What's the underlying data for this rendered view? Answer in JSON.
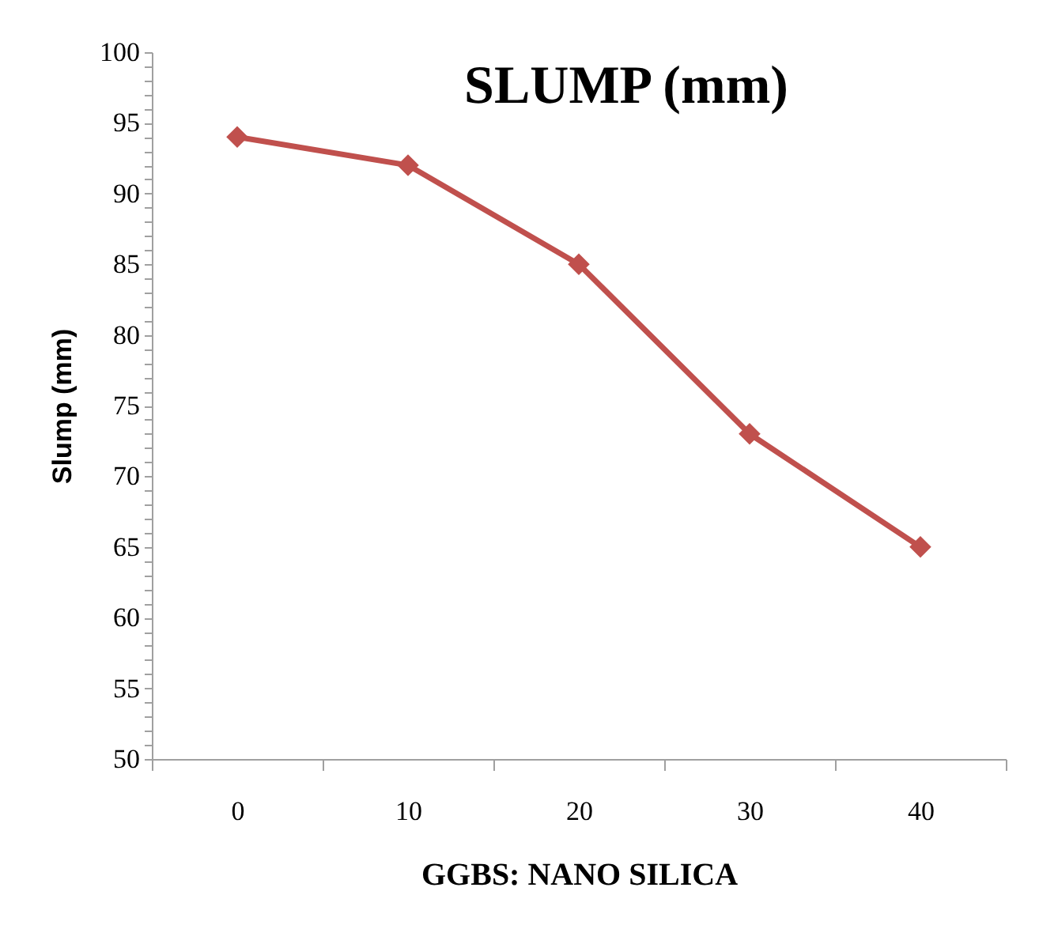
{
  "chart_data": {
    "type": "line",
    "title": "SLUMP (mm)",
    "xlabel": "GGBS: NANO SILICA",
    "ylabel": "Slump (mm)",
    "categories": [
      "0",
      "10",
      "20",
      "30",
      "40"
    ],
    "series": [
      {
        "color": "#c0504d",
        "values": [
          94,
          92,
          85,
          73,
          65
        ]
      }
    ],
    "ylim": [
      50,
      100
    ],
    "yticks": [
      50,
      {
        "value": 51,
        "label": null
      },
      {
        "value": 52,
        "label": null
      },
      {
        "value": 53,
        "label": null
      },
      {
        "value": 54,
        "label": null
      },
      55,
      {
        "value": 56,
        "label": null
      },
      {
        "value": 57,
        "label": null
      },
      {
        "value": 58,
        "label": null
      },
      {
        "value": 59,
        "label": null
      },
      60,
      {
        "value": 61,
        "label": null
      },
      {
        "value": 62,
        "label": null
      },
      {
        "value": 63,
        "label": null
      },
      {
        "value": 64,
        "label": null
      },
      65,
      {
        "value": 66,
        "label": null
      },
      {
        "value": 67,
        "label": null
      },
      {
        "value": 68,
        "label": null
      },
      {
        "value": 69,
        "label": null
      },
      70,
      {
        "value": 71,
        "label": null
      },
      {
        "value": 72,
        "label": null
      },
      {
        "value": 73,
        "label": null
      },
      {
        "value": 74,
        "label": null
      },
      75,
      {
        "value": 76,
        "label": null
      },
      {
        "value": 77,
        "label": null
      },
      {
        "value": 78,
        "label": null
      },
      {
        "value": 79,
        "label": null
      },
      80,
      {
        "value": 81,
        "label": null
      },
      {
        "value": 82,
        "label": null
      },
      {
        "value": 83,
        "label": null
      },
      {
        "value": 84,
        "label": null
      },
      85,
      {
        "value": 86,
        "label": null
      },
      {
        "value": 87,
        "label": null
      },
      {
        "value": 88,
        "label": null
      },
      {
        "value": 89,
        "label": null
      },
      90,
      {
        "value": 91,
        "label": null
      },
      {
        "value": 92,
        "label": null
      },
      {
        "value": 93,
        "label": null
      },
      {
        "value": 94,
        "label": null
      },
      95,
      {
        "value": 96,
        "label": null
      },
      {
        "value": 97,
        "label": null
      },
      {
        "value": 98,
        "label": null
      },
      {
        "value": 99,
        "label": null
      },
      100
    ],
    "grid": false,
    "marker": "diamond",
    "line_style": "solid"
  }
}
